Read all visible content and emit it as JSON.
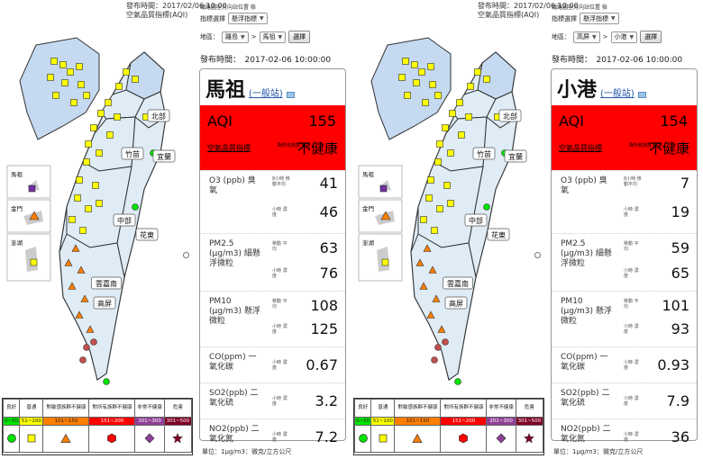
{
  "panels": [
    {
      "publish_line": "發布時間：2017/02/06 10:00",
      "index_name": "空氣品質指標(AQI)",
      "selector_title": "鐵路圖全方向站位置 檢",
      "index_selector_label": "指標選擇",
      "index_selector_value": "懸浮指標",
      "area_label": "地區：",
      "area_value": "離島",
      "site_value": "馬祖",
      "submit_label": "選擇",
      "publish_time": "發布時間：　2017-02-06 10:00:00",
      "site_name": "馬祖",
      "site_type": "(一般站)",
      "aqi_label": "AQI",
      "aqi_value": "155",
      "aqi_sub": "空氣品質指標",
      "aqi_small": "對所有族群 健康",
      "aqi_category": "不健康",
      "marker_color": "#7030a0",
      "pollutants": {
        "o3_name": "O3 (ppb) 臭氧",
        "o3_avg8_label": "8小時 移動平均",
        "o3_avg8_value": "41",
        "o3_1h_label": "小時 濃度",
        "o3_1h_value": "46",
        "pm25_name": "PM2.5 (μg/m3) 細懸浮微粒",
        "pm25_avg_label": "移動 平均",
        "pm25_avg_value": "63",
        "pm25_1h_label": "小時 濃度",
        "pm25_1h_value": "76",
        "pm10_name": "PM10 (μg/m3) 懸浮微粒",
        "pm10_avg_label": "移動 平均",
        "pm10_avg_value": "108",
        "pm10_1h_label": "小時 濃度",
        "pm10_1h_value": "125",
        "co_name": "CO(ppm) 一氧化碳",
        "co_label": "小時 濃度",
        "co_value": "0.67",
        "so2_name": "SO2(ppb) 二氧化硫",
        "so2_label": "小時 濃度",
        "so2_value": "3.2",
        "no2_name": "NO2(ppb) 二氧化氮",
        "no2_label": "小時 濃度",
        "no2_value": "7.2"
      },
      "unit_note": "單位：1μg/m3：微克/立方公尺"
    },
    {
      "publish_line": "發布時間：2017/02/06 10:00",
      "index_name": "空氣品質指標(AQI)",
      "selector_title": "鐵路圖全方向站位置 檢",
      "index_selector_label": "指標選擇",
      "index_selector_value": "懸浮指標",
      "area_label": "地區：",
      "area_value": "高屏",
      "site_value": "小港",
      "submit_label": "選擇",
      "publish_time": "發布時間：　2017-02-06 10:00:00",
      "site_name": "小港",
      "site_type": "(一般站)",
      "aqi_label": "AQI",
      "aqi_value": "154",
      "aqi_sub": "空氣品質指標",
      "aqi_small": "對所有族群 健康",
      "aqi_category": "不健康",
      "marker_color": "#7030a0",
      "pollutants": {
        "o3_name": "O3 (ppb) 臭氧",
        "o3_avg8_label": "8小時 移動平均",
        "o3_avg8_value": "7",
        "o3_1h_label": "小時 濃度",
        "o3_1h_value": "19",
        "pm25_name": "PM2.5 (μg/m3) 細懸浮微粒",
        "pm25_avg_label": "移動 平均",
        "pm25_avg_value": "59",
        "pm25_1h_label": "小時 濃度",
        "pm25_1h_value": "65",
        "pm10_name": "PM10 (μg/m3) 懸浮微粒",
        "pm10_avg_label": "移動 平均",
        "pm10_avg_value": "101",
        "pm10_1h_label": "小時 濃度",
        "pm10_1h_value": "93",
        "co_name": "CO(ppm) 一氧化碳",
        "co_label": "小時 濃度",
        "co_value": "0.93",
        "so2_name": "SO2(ppb) 二氧化硫",
        "so2_label": "小時 濃度",
        "so2_value": "7.9",
        "no2_name": "NO2(ppb) 二氧化氮",
        "no2_label": "小時 濃度",
        "no2_value": "36"
      },
      "unit_note": "單位：1μg/m3：微克/立方公尺"
    }
  ],
  "map": {
    "region_labels": [
      "北部",
      "竹苗",
      "宜蘭",
      "中部",
      "花東",
      "雲嘉南",
      "高屏"
    ],
    "inset_labels": [
      "馬祖",
      "金門",
      "澎湖"
    ],
    "land_color": "#dfecf6",
    "north_color": "#c5d9f1"
  },
  "legend": {
    "labels": [
      "良好",
      "普通",
      "對敏感族群不健康",
      "對所有族群不健康",
      "非常不健康",
      "危害"
    ],
    "ranges": [
      "0~50",
      "51~100",
      "101~150",
      "151~200",
      "201~300",
      "301~500"
    ],
    "colors": [
      "#00e400",
      "#ffff00",
      "#ff7e00",
      "#ff0000",
      "#8f3f97",
      "#7e0023"
    ],
    "icons": [
      "circle-icon",
      "square-icon",
      "triangle-icon",
      "hexagon-icon",
      "diamond-icon",
      "star-icon"
    ]
  }
}
